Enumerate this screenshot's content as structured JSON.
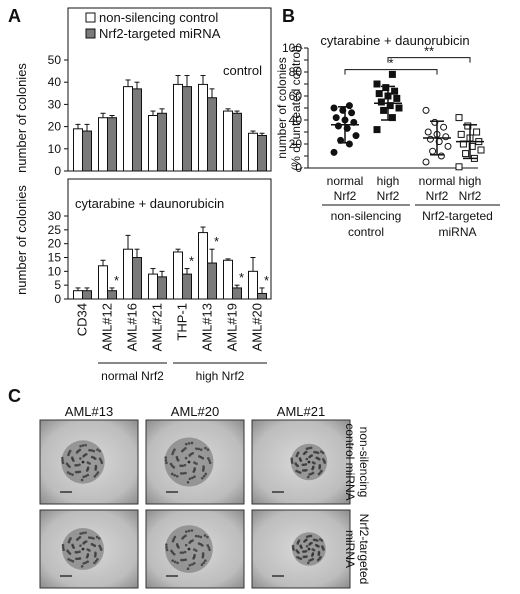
{
  "panel_labels": {
    "a": "A",
    "b": "B",
    "c": "C"
  },
  "legend_a": [
    {
      "label": "non-silencing control",
      "color": "#ffffff"
    },
    {
      "label": "Nrf2-targeted miRNA",
      "color": "#7a7a7a"
    }
  ],
  "colors": {
    "white_bar": "#ffffff",
    "gray_bar": "#7a7a7a",
    "axis": "#111111",
    "micro_bg": "#b8b8b8"
  },
  "chart_data": [
    {
      "id": "A-top",
      "type": "bar",
      "title": "control",
      "xlabel": "",
      "ylabel": "number of colonies",
      "ylim": [
        0,
        50
      ],
      "yticks": [
        0,
        10,
        20,
        30,
        40,
        50
      ],
      "categories": [
        "CD34",
        "AML#12",
        "AML#16",
        "AML#21",
        "THP-1",
        "AML#13",
        "AML#19",
        "AML#20"
      ],
      "series": [
        {
          "name": "non-silencing control",
          "values": [
            19,
            24,
            38,
            25,
            39,
            39,
            27,
            17
          ],
          "errors": [
            2,
            2,
            3,
            2,
            4,
            4,
            1,
            1
          ]
        },
        {
          "name": "Nrf2-targeted miRNA",
          "values": [
            18,
            24,
            37,
            26,
            38,
            33,
            26,
            16
          ],
          "errors": [
            3,
            1,
            3,
            2,
            5,
            4,
            1,
            1
          ]
        }
      ],
      "grid": false,
      "legend": "top-left"
    },
    {
      "id": "A-bottom",
      "type": "bar",
      "title": "cytarabine + daunorubicin",
      "xlabel": "",
      "ylabel": "number of colonies",
      "ylim": [
        0,
        30
      ],
      "yticks": [
        0,
        5,
        10,
        15,
        20,
        25,
        30
      ],
      "categories": [
        "CD34",
        "AML#12",
        "AML#16",
        "AML#21",
        "THP-1",
        "AML#13",
        "AML#19",
        "AML#20"
      ],
      "series": [
        {
          "name": "non-silencing control",
          "values": [
            3,
            12,
            18,
            9,
            17,
            24,
            14,
            10
          ],
          "errors": [
            1,
            2,
            5,
            2,
            1,
            2,
            0.5,
            5
          ]
        },
        {
          "name": "Nrf2-targeted miRNA",
          "values": [
            3,
            3,
            15,
            8,
            9,
            13,
            4,
            2
          ],
          "errors": [
            1,
            1,
            3,
            2,
            2,
            5,
            1,
            2
          ]
        }
      ],
      "significance": [
        {
          "category": "AML#12",
          "label": "*"
        },
        {
          "category": "THP-1",
          "label": "*"
        },
        {
          "category": "AML#13",
          "label": "*"
        },
        {
          "category": "AML#19",
          "label": "*"
        },
        {
          "category": "AML#20",
          "label": "*"
        }
      ],
      "group_labels": [
        {
          "label": "normal Nrf2",
          "from": "AML#12",
          "to": "AML#21"
        },
        {
          "label": "high Nrf2",
          "from": "THP-1",
          "to": "AML#20"
        }
      ],
      "grid": false
    },
    {
      "id": "B",
      "type": "scatter",
      "title": "cytarabine + daunorubicin",
      "xlabel": "",
      "ylabel": "number of colonies (% of untreated control)",
      "ylim": [
        0,
        100
      ],
      "yticks": [
        0,
        10,
        20,
        30,
        40,
        50,
        60,
        70,
        80,
        90,
        100
      ],
      "ytick_labels": [
        "0",
        "",
        "20",
        "",
        "40",
        "",
        "60",
        "",
        "80",
        "",
        "100"
      ],
      "groups": [
        {
          "label_line1": "normal",
          "label_line2": "Nrf2",
          "marker": "filled-circle",
          "mean": 36,
          "sd": 15,
          "points": [
            13,
            20,
            23,
            27,
            33,
            35,
            38,
            40,
            42,
            46,
            48,
            50,
            52
          ]
        },
        {
          "label_line1": "high",
          "label_line2": "Nrf2",
          "marker": "filled-square",
          "mean": 54,
          "sd": 14,
          "points": [
            32,
            42,
            48,
            50,
            52,
            55,
            58,
            60,
            62,
            64,
            67,
            70,
            78
          ]
        },
        {
          "label_line1": "normal",
          "label_line2": "Nrf2",
          "marker": "open-circle",
          "mean": 25,
          "sd": 14,
          "points": [
            5,
            10,
            14,
            18,
            22,
            24,
            26,
            28,
            30,
            34,
            38,
            48
          ]
        },
        {
          "label_line1": "high",
          "label_line2": "Nrf2",
          "marker": "open-square",
          "mean": 22,
          "sd": 14,
          "points": [
            1,
            8,
            12,
            15,
            18,
            20,
            22,
            25,
            28,
            30,
            35,
            42
          ]
        }
      ],
      "group_captions": [
        {
          "label_line1": "non-silencing",
          "label_line2": "control"
        },
        {
          "label_line1": "Nrf2-targeted",
          "label_line2": "miRNA"
        }
      ],
      "significance": [
        {
          "from": 0,
          "to": 2,
          "label": "*"
        },
        {
          "from": 1,
          "to": 3,
          "label": "**"
        }
      ],
      "grid": false
    }
  ],
  "panel_c": {
    "column_labels": [
      "AML#13",
      "AML#20",
      "AML#21"
    ],
    "row_labels": [
      {
        "line1": "non-silencing",
        "line2": "control miRNA"
      },
      {
        "line1": "Nrf2-targeted",
        "line2": "miRNA"
      }
    ],
    "image_descriptions": [
      "micrograph-aml13-control",
      "micrograph-aml20-control",
      "micrograph-aml21-control",
      "micrograph-aml13-nrf2",
      "micrograph-aml20-nrf2",
      "micrograph-aml21-nrf2"
    ],
    "colony_sizes": [
      0.55,
      0.75,
      0.3,
      0.5,
      0.7,
      0.2
    ]
  }
}
